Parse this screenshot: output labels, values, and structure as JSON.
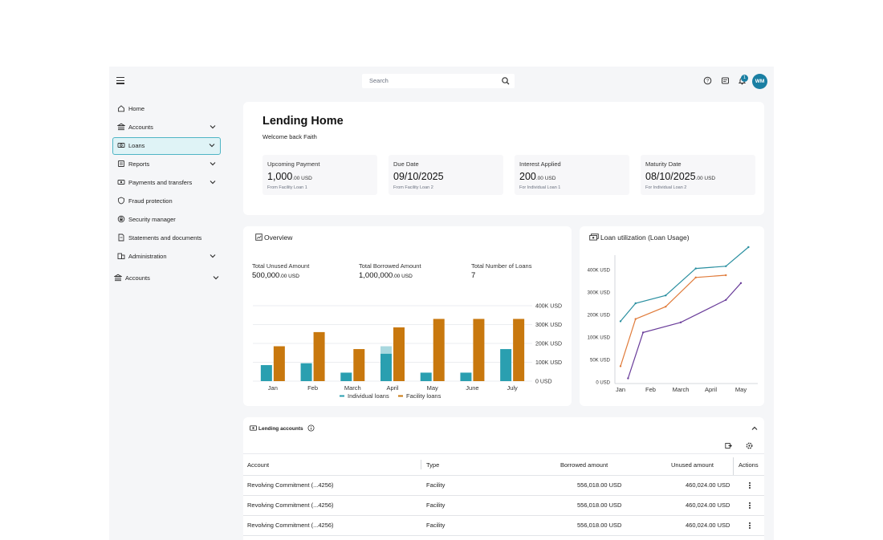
{
  "topbar": {
    "search_placeholder": "Search",
    "notification_count": "1",
    "avatar_initials": "WM"
  },
  "sidebar": {
    "items": [
      {
        "label": "Home",
        "icon": "home-icon",
        "expandable": false
      },
      {
        "label": "Accounts",
        "icon": "bank-icon",
        "expandable": true
      },
      {
        "label": "Loans",
        "icon": "loan-icon",
        "expandable": true,
        "active": true
      },
      {
        "label": "Reports",
        "icon": "report-icon",
        "expandable": true
      },
      {
        "label": "Payments and transfers",
        "icon": "transfer-icon",
        "expandable": true
      },
      {
        "label": "Fraud protection",
        "icon": "shield-icon",
        "expandable": false
      },
      {
        "label": "Security manager",
        "icon": "lock-icon",
        "expandable": false
      },
      {
        "label": "Statements and documents",
        "icon": "document-icon",
        "expandable": false
      },
      {
        "label": "Administration",
        "icon": "admin-icon",
        "expandable": true
      },
      {
        "label": "Accounts",
        "icon": "bank-icon",
        "expandable": true
      }
    ]
  },
  "header": {
    "title": "Lending Home",
    "welcome": "Welcome back Faith"
  },
  "kpis": [
    {
      "title": "Upcoming Payment",
      "value": "1,000",
      "decimals": ".00 USD",
      "sub": "From Facility Loan 1"
    },
    {
      "title": "Due Date",
      "value": "09/10/2025",
      "decimals": "",
      "sub": "From Facility Loan 2"
    },
    {
      "title": "Interest Applied",
      "value": "200",
      "decimals": ".00 USD",
      "sub": "For Individual Loan 1"
    },
    {
      "title": "Maturity Date",
      "value": "08/10/2025",
      "decimals": ".00 USD",
      "sub": "For Individual Loan 2"
    }
  ],
  "overview": {
    "title": "Overview",
    "stats": [
      {
        "label": "Total Unused Amount",
        "value": "500,000",
        "decimals": ".00 USD"
      },
      {
        "label": "Total Borrowed Amount",
        "value": "1,000,000",
        "decimals": ".00 USD"
      },
      {
        "label": "Total Number of Loans",
        "value": "7",
        "decimals": ""
      }
    ]
  },
  "utilization": {
    "title": "Loan utilization (Loan Usage)"
  },
  "chart_data": [
    {
      "type": "bar",
      "title": "",
      "categories": [
        "Jan",
        "Feb",
        "March",
        "April",
        "May",
        "June",
        "July"
      ],
      "y_ticks": [
        "400K USD",
        "300K USD",
        "200K USD",
        "100K USD",
        "0 USD"
      ],
      "ylim": [
        0,
        400000
      ],
      "series": [
        {
          "name": "Individual loans",
          "color": "#2a9fb0",
          "values": [
            85000,
            95000,
            45000,
            185000,
            45000,
            45000,
            170000
          ],
          "overlay": [
            0,
            0,
            0,
            145000,
            0,
            0,
            0
          ]
        },
        {
          "name": "Facility loans",
          "color": "#c8780e",
          "values": [
            185000,
            260000,
            170000,
            285000,
            330000,
            330000,
            330000
          ]
        }
      ],
      "legend": "bottom-center"
    },
    {
      "type": "line",
      "title": "Loan utilization (Loan Usage)",
      "categories": [
        "Jan",
        "Feb",
        "March",
        "April",
        "May"
      ],
      "x": [
        0,
        0.5,
        1,
        1.5,
        2,
        2.5,
        3,
        3.5,
        4,
        4.25
      ],
      "y_ticks": [
        "400K USD",
        "300K USD",
        "200K USD",
        "100K USD",
        "50K USD",
        "0 USD"
      ],
      "series": [
        {
          "color": "#2a8fa0",
          "values": [
            [
              0,
              170000
            ],
            [
              0.5,
              250000
            ],
            [
              1.5,
              285000
            ],
            [
              2.5,
              405000
            ],
            [
              3.5,
              415000
            ],
            [
              4.25,
              500000
            ]
          ]
        },
        {
          "color": "#e07b3a",
          "values": [
            [
              0,
              35000
            ],
            [
              0.5,
              180000
            ],
            [
              1.5,
              235000
            ],
            [
              2.5,
              365000
            ],
            [
              3.5,
              375000
            ]
          ]
        },
        {
          "color": "#6a3d9a",
          "values": [
            [
              0.25,
              8000
            ],
            [
              0.75,
              120000
            ],
            [
              2,
              165000
            ],
            [
              3.5,
              265000
            ],
            [
              4,
              340000
            ]
          ]
        }
      ],
      "legend": "none"
    }
  ],
  "table": {
    "title": "Lending accounts",
    "headers": [
      "Account",
      "Type",
      "Borrowed amount",
      "Unused amount",
      "Actions"
    ],
    "rows": [
      {
        "account": "Revolving Commitment (...4256)",
        "type": "Facility",
        "borrowed": "556,018.00 USD",
        "unused": "460,024.00 USD"
      },
      {
        "account": "Revolving Commitment (...4256)",
        "type": "Facility",
        "borrowed": "556,018.00 USD",
        "unused": "460,024.00 USD"
      },
      {
        "account": "Revolving Commitment (...4256)",
        "type": "Facility",
        "borrowed": "556,018.00 USD",
        "unused": "460,024.00 USD"
      }
    ]
  }
}
